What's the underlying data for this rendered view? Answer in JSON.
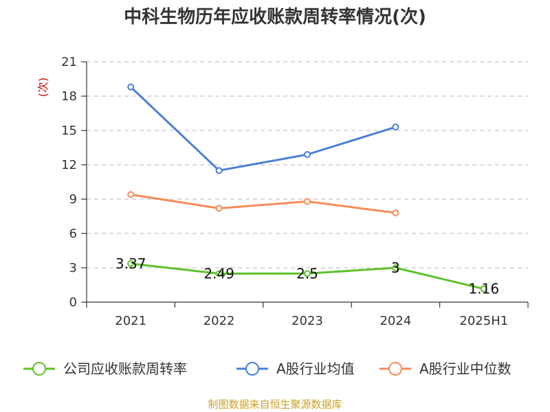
{
  "title": "中科生物历年应收账款周转率情况(次)",
  "source": "制图数据来自恒生聚源数据库",
  "chart_data": {
    "type": "line",
    "title": "中科生物历年应收账款周转率情况(次)",
    "xlabel": "",
    "ylabel": "(次)",
    "categories": [
      "2021",
      "2022",
      "2023",
      "2024",
      "2025H1"
    ],
    "ylim": [
      0,
      21
    ],
    "yticks": [
      0,
      3,
      6,
      9,
      12,
      15,
      18,
      21
    ],
    "grid": true,
    "legend_position": "bottom",
    "series": [
      {
        "name": "公司应收账款周转率",
        "color": "#5ec22a",
        "values": [
          3.37,
          2.49,
          2.5,
          3,
          1.16
        ],
        "labels": [
          "3.37",
          "2.49",
          "2.5",
          "3",
          "1.16"
        ]
      },
      {
        "name": "A股行业均值",
        "color": "#4a7fd6",
        "values": [
          18.8,
          11.5,
          12.9,
          15.3,
          null
        ]
      },
      {
        "name": "A股行业中位数",
        "color": "#f68c57",
        "values": [
          9.4,
          8.2,
          8.8,
          7.8,
          null
        ]
      }
    ]
  }
}
